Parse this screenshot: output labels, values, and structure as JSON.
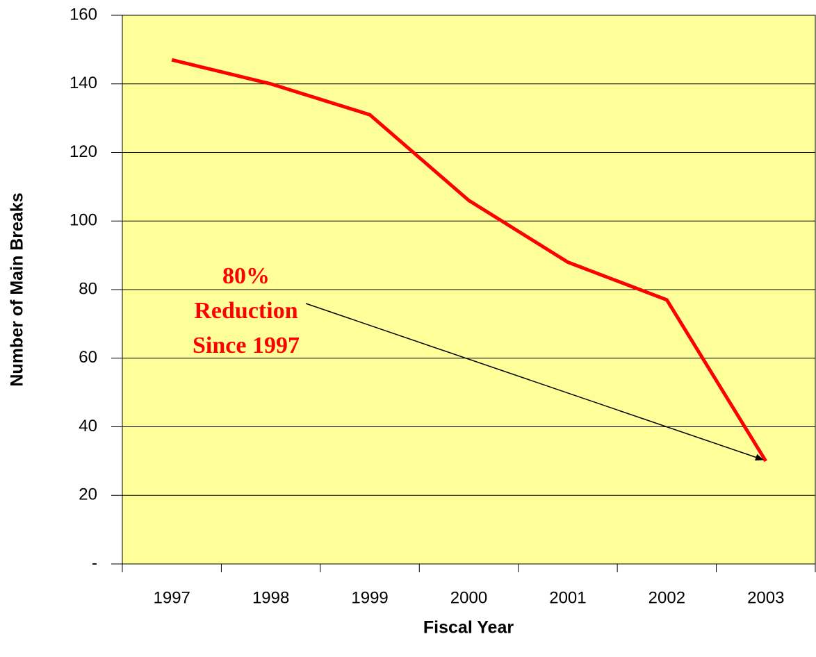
{
  "chart_data": {
    "type": "line",
    "categories": [
      "1997",
      "1998",
      "1999",
      "2000",
      "2001",
      "2002",
      "2003"
    ],
    "values": [
      147,
      140,
      131,
      106,
      88,
      77,
      30
    ],
    "color": "#ff0000",
    "ylim": [
      0,
      160
    ],
    "yticks": [
      {
        "value": 0,
        "label": "-"
      },
      20,
      40,
      60,
      80,
      100,
      120,
      140,
      160
    ],
    "grid": true,
    "x_label": "Fiscal Year",
    "y_label": "Number of Main Breaks",
    "annotation": [
      "80%",
      "Reduction",
      "Since 1997"
    ]
  }
}
